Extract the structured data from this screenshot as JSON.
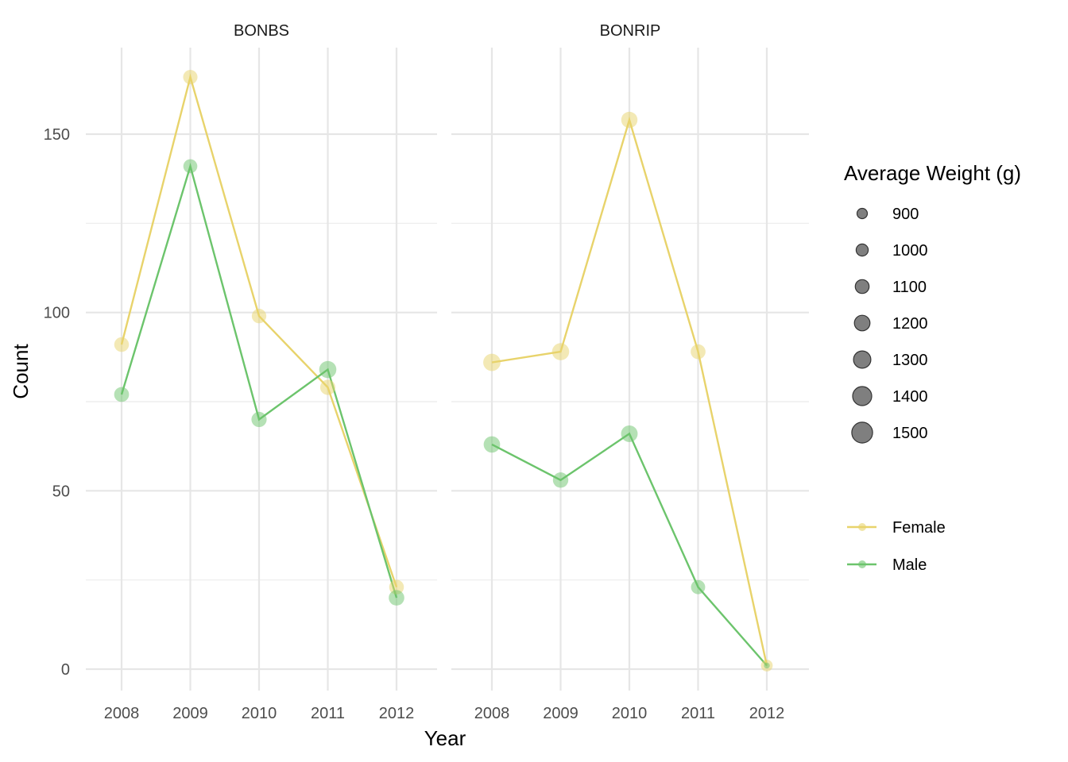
{
  "chart_data": {
    "type": "scatter",
    "xlabel": "Year",
    "ylabel": "Count",
    "ylim": [
      -6,
      175
    ],
    "x": [
      2008,
      2009,
      2010,
      2011,
      2012
    ],
    "x_ticks": [
      "2008",
      "2009",
      "2010",
      "2011",
      "2012"
    ],
    "y_ticks": [
      0,
      50,
      100,
      150
    ],
    "y_tick_labels": [
      "0",
      "50",
      "100",
      "150"
    ],
    "grid": true,
    "legend_position": "right",
    "size_legend": {
      "title": "Average Weight (g)",
      "values": [
        900,
        1000,
        1100,
        1200,
        1300,
        1400,
        1500
      ],
      "labels": [
        "900",
        "1000",
        "1100",
        "1200",
        "1300",
        "1400",
        "1500"
      ]
    },
    "color_legend": [
      {
        "name": "Female",
        "color": "#e8d36b"
      },
      {
        "name": "Male",
        "color": "#6cc46c"
      }
    ],
    "facets": [
      {
        "label": "BONBS",
        "series": [
          {
            "name": "Female",
            "counts": [
              91,
              166,
              99,
              79,
              23
            ],
            "avg_weight": [
              1150,
              1130,
              1140,
              1180,
              1150
            ]
          },
          {
            "name": "Male",
            "counts": [
              77,
              141,
              70,
              84,
              20
            ],
            "avg_weight": [
              1160,
              1110,
              1180,
              1290,
              1200
            ]
          }
        ]
      },
      {
        "label": "BONRIP",
        "series": [
          {
            "name": "Female",
            "counts": [
              86,
              89,
              154,
              89,
              1
            ],
            "avg_weight": [
              1300,
              1290,
              1240,
              1160,
              980
            ]
          },
          {
            "name": "Male",
            "counts": [
              63,
              53,
              66,
              23,
              1
            ],
            "avg_weight": [
              1250,
              1190,
              1260,
              1120,
              650
            ]
          }
        ]
      }
    ]
  }
}
